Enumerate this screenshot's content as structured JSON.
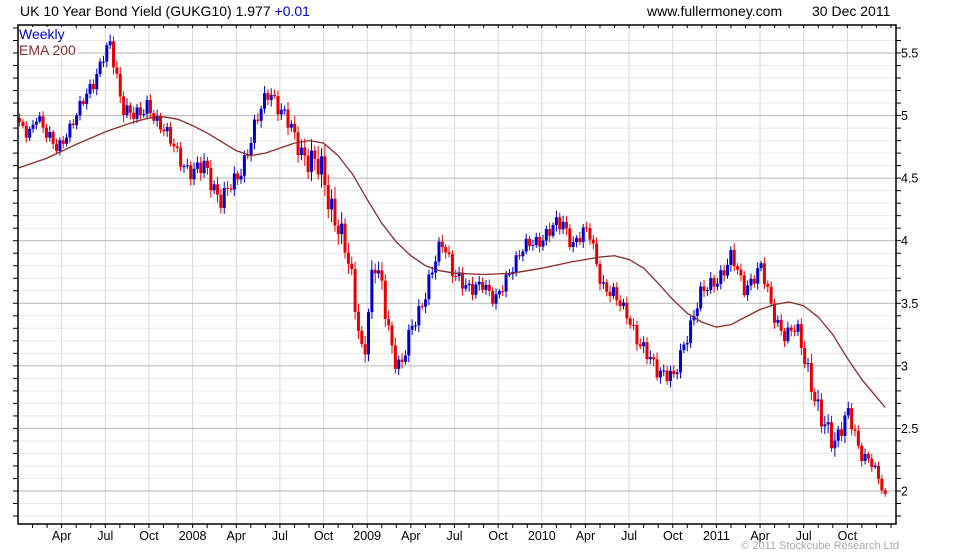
{
  "header": {
    "title": "UK 10 Year Bond Yield (GUKG10)",
    "last_price": "1.977",
    "change": "+0.01",
    "website": "www.fullermoney.com",
    "date": "30 Dec 2011"
  },
  "legend": {
    "timeframe": "Weekly",
    "overlay": "EMA 200"
  },
  "footer": {
    "copyright": "© 2011 Stockcube Research Ltd"
  },
  "colors": {
    "up": "#0000cc",
    "down": "#e60000",
    "ema": "#8b2a2a",
    "grid_minor": "#e9e9e9",
    "grid_major": "#b6b6b6",
    "grid_vertical": "#d9d9d9",
    "axis": "#000000",
    "label": "#000000"
  },
  "chart_data": {
    "type": "candlestick",
    "title": "UK 10 Year Bond Yield (GUKG10)",
    "timeframe": "weekly",
    "overlay": "EMA 200",
    "x_range_months": 60,
    "x_start": "Jan 2007",
    "x_end": "Dec 2011",
    "last_close": 1.977,
    "y_axis": {
      "min": 1.74,
      "max": 5.72,
      "tick_minor": 0.1,
      "tick_major": 0.5,
      "labels": [
        {
          "v": 5.5,
          "label": "5.5"
        },
        {
          "v": 5.0,
          "label": "5"
        },
        {
          "v": 4.5,
          "label": "4.5"
        },
        {
          "v": 4.0,
          "label": "4"
        },
        {
          "v": 3.5,
          "label": "3.5"
        },
        {
          "v": 3.0,
          "label": "3"
        },
        {
          "v": 2.5,
          "label": "2.5"
        },
        {
          "v": 2.0,
          "label": "2"
        }
      ]
    },
    "x_ticks": [
      {
        "label": "Apr",
        "m": 3
      },
      {
        "label": "Jul",
        "m": 6
      },
      {
        "label": "Oct",
        "m": 9
      },
      {
        "label": "2008",
        "m": 12
      },
      {
        "label": "Apr",
        "m": 15
      },
      {
        "label": "Jul",
        "m": 18
      },
      {
        "label": "Oct",
        "m": 21
      },
      {
        "label": "2009",
        "m": 24
      },
      {
        "label": "Apr",
        "m": 27
      },
      {
        "label": "Jul",
        "m": 30
      },
      {
        "label": "Oct",
        "m": 33
      },
      {
        "label": "2010",
        "m": 36
      },
      {
        "label": "Apr",
        "m": 39
      },
      {
        "label": "Jul",
        "m": 42
      },
      {
        "label": "Oct",
        "m": 45
      },
      {
        "label": "2011",
        "m": 48
      },
      {
        "label": "Apr",
        "m": 51
      },
      {
        "label": "Jul",
        "m": 54
      },
      {
        "label": "Oct",
        "m": 57
      }
    ],
    "close_anchors": [
      [
        0,
        4.9,
        0.05
      ],
      [
        0.6,
        4.84,
        0.05
      ],
      [
        1.2,
        5.03,
        0.05
      ],
      [
        2,
        4.8,
        0.06
      ],
      [
        2.6,
        4.73,
        0.05
      ],
      [
        3.2,
        4.86,
        0.05
      ],
      [
        4,
        5.0,
        0.05
      ],
      [
        5,
        5.26,
        0.06
      ],
      [
        5.9,
        5.5,
        0.06
      ],
      [
        6.3,
        5.53,
        0.07
      ],
      [
        7,
        5.14,
        0.08
      ],
      [
        7.6,
        5.04,
        0.07
      ],
      [
        8.3,
        4.97,
        0.06
      ],
      [
        8.9,
        5.09,
        0.06
      ],
      [
        9.6,
        4.96,
        0.06
      ],
      [
        10.4,
        4.79,
        0.06
      ],
      [
        11.2,
        4.65,
        0.06
      ],
      [
        12,
        4.53,
        0.07
      ],
      [
        12.9,
        4.59,
        0.08
      ],
      [
        14,
        4.31,
        0.08
      ],
      [
        15,
        4.49,
        0.07
      ],
      [
        16,
        4.8,
        0.07
      ],
      [
        17.3,
        5.23,
        0.07
      ],
      [
        18.1,
        5.03,
        0.07
      ],
      [
        19,
        4.83,
        0.08
      ],
      [
        20,
        4.66,
        0.11
      ],
      [
        21,
        4.5,
        0.14
      ],
      [
        22,
        4.16,
        0.12
      ],
      [
        22.9,
        3.72,
        0.1
      ],
      [
        23.8,
        3.07,
        0.08
      ],
      [
        24.5,
        3.81,
        0.1
      ],
      [
        25.1,
        3.59,
        0.1
      ],
      [
        25.9,
        3.1,
        0.08
      ],
      [
        26.4,
        2.97,
        0.07
      ],
      [
        27.2,
        3.32,
        0.07
      ],
      [
        28.1,
        3.6,
        0.07
      ],
      [
        29.3,
        3.99,
        0.07
      ],
      [
        30.1,
        3.76,
        0.07
      ],
      [
        31,
        3.57,
        0.07
      ],
      [
        32,
        3.7,
        0.06
      ],
      [
        32.9,
        3.48,
        0.06
      ],
      [
        34,
        3.8,
        0.06
      ],
      [
        35,
        3.94,
        0.05
      ],
      [
        36.1,
        4.03,
        0.06
      ],
      [
        37.6,
        4.14,
        0.07
      ],
      [
        38.3,
        3.99,
        0.06
      ],
      [
        39.4,
        4.07,
        0.06
      ],
      [
        40.4,
        3.64,
        0.07
      ],
      [
        41.2,
        3.53,
        0.06
      ],
      [
        42.1,
        3.43,
        0.06
      ],
      [
        43,
        3.12,
        0.07
      ],
      [
        44,
        3.01,
        0.07
      ],
      [
        45.3,
        2.88,
        0.06
      ],
      [
        46.1,
        3.24,
        0.07
      ],
      [
        47,
        3.53,
        0.07
      ],
      [
        48,
        3.67,
        0.06
      ],
      [
        49.3,
        3.85,
        0.07
      ],
      [
        50.1,
        3.63,
        0.06
      ],
      [
        51.3,
        3.77,
        0.06
      ],
      [
        52.1,
        3.45,
        0.06
      ],
      [
        53,
        3.23,
        0.06
      ],
      [
        53.8,
        3.29,
        0.06
      ],
      [
        54.6,
        2.98,
        0.09
      ],
      [
        55.4,
        2.54,
        0.1
      ],
      [
        56.3,
        2.41,
        0.09
      ],
      [
        57.3,
        2.62,
        0.07
      ],
      [
        58.1,
        2.31,
        0.06
      ],
      [
        58.9,
        2.27,
        0.05
      ],
      [
        59.6,
        2.02,
        0.05
      ],
      [
        59.9,
        1.98,
        0.04
      ]
    ],
    "ema_anchors": [
      [
        0,
        4.58
      ],
      [
        2,
        4.66
      ],
      [
        4,
        4.77
      ],
      [
        6,
        4.87
      ],
      [
        8,
        4.95
      ],
      [
        9,
        4.98
      ],
      [
        10,
        4.99
      ],
      [
        11,
        4.97
      ],
      [
        12,
        4.92
      ],
      [
        13,
        4.86
      ],
      [
        14,
        4.79
      ],
      [
        15,
        4.72
      ],
      [
        16,
        4.68
      ],
      [
        17,
        4.7
      ],
      [
        18,
        4.74
      ],
      [
        19,
        4.78
      ],
      [
        20,
        4.8
      ],
      [
        21,
        4.78
      ],
      [
        22,
        4.68
      ],
      [
        23,
        4.53
      ],
      [
        24,
        4.33
      ],
      [
        25,
        4.14
      ],
      [
        26,
        3.99
      ],
      [
        27,
        3.88
      ],
      [
        28,
        3.8
      ],
      [
        29,
        3.76
      ],
      [
        30,
        3.74
      ],
      [
        32,
        3.73
      ],
      [
        34,
        3.74
      ],
      [
        35,
        3.76
      ],
      [
        36,
        3.78
      ],
      [
        38,
        3.83
      ],
      [
        40,
        3.87
      ],
      [
        41,
        3.88
      ],
      [
        42,
        3.85
      ],
      [
        43,
        3.78
      ],
      [
        44,
        3.66
      ],
      [
        45,
        3.53
      ],
      [
        46,
        3.42
      ],
      [
        47,
        3.35
      ],
      [
        48,
        3.31
      ],
      [
        49,
        3.33
      ],
      [
        50,
        3.39
      ],
      [
        51,
        3.45
      ],
      [
        52,
        3.49
      ],
      [
        53,
        3.51
      ],
      [
        54,
        3.48
      ],
      [
        55,
        3.39
      ],
      [
        56,
        3.25
      ],
      [
        57,
        3.06
      ],
      [
        58,
        2.89
      ],
      [
        59,
        2.75
      ],
      [
        59.8,
        2.64
      ]
    ]
  }
}
